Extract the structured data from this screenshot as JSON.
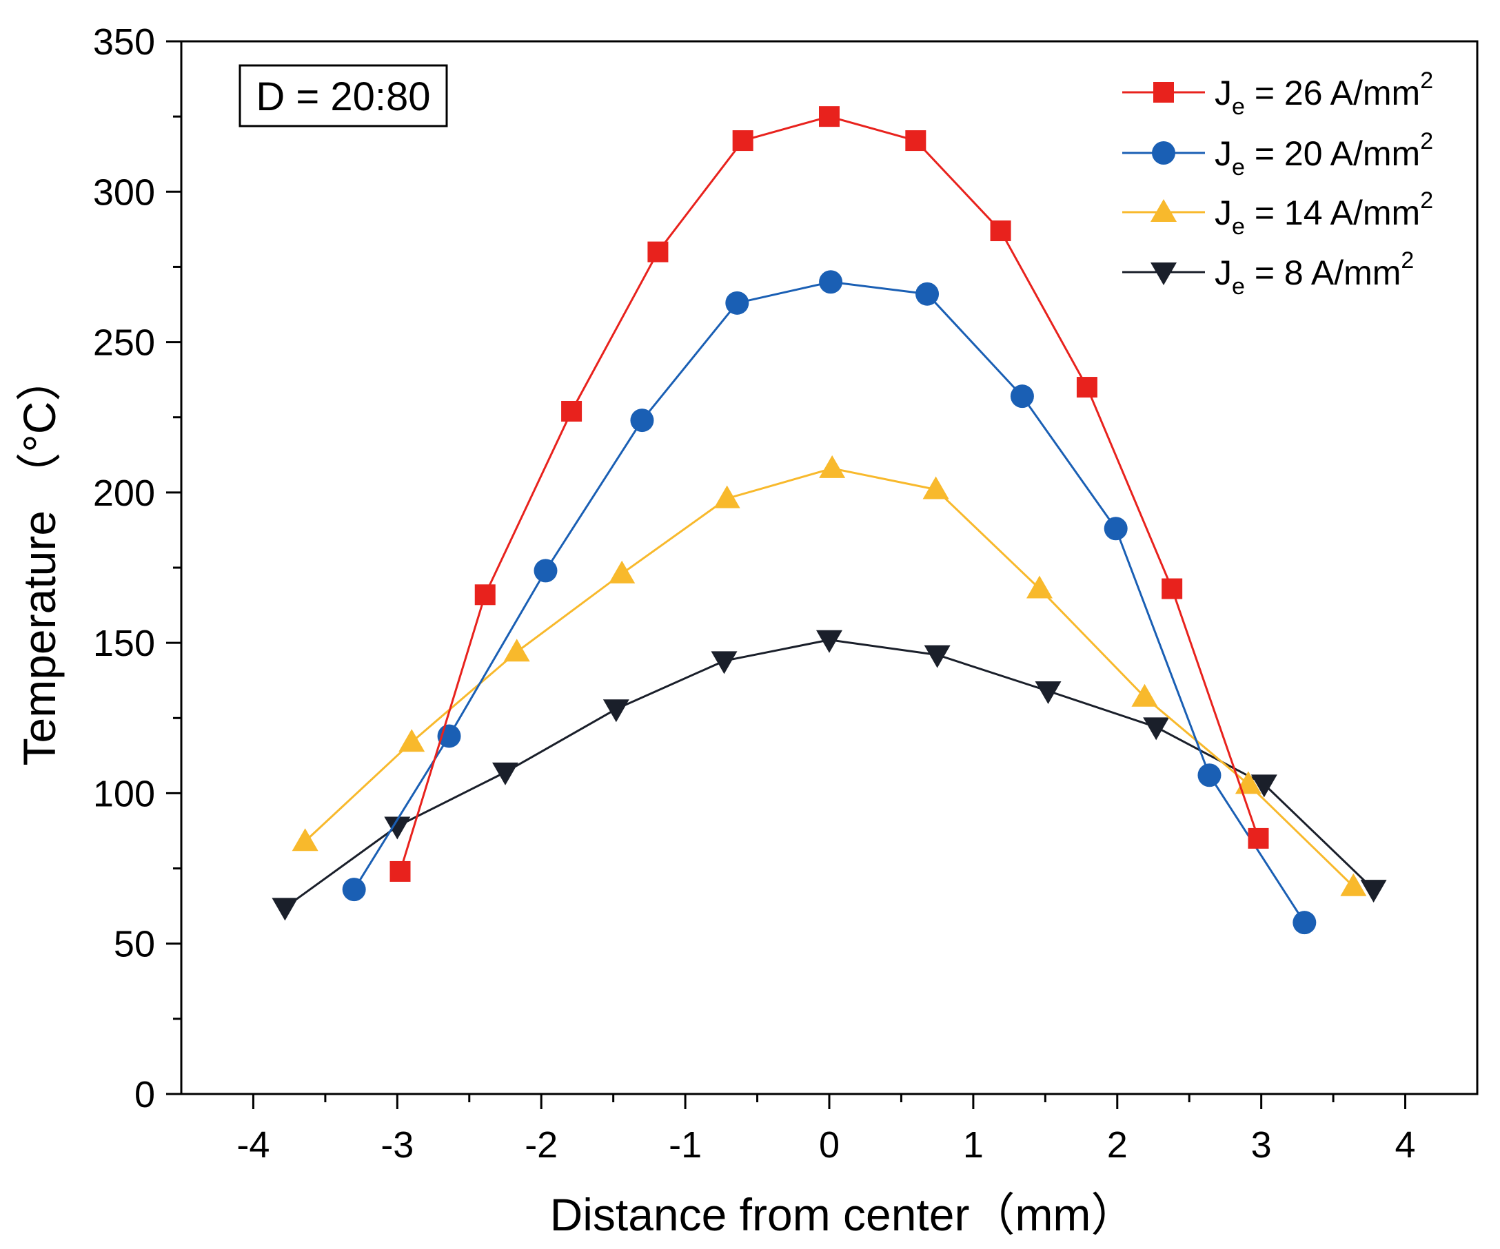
{
  "chart_data": {
    "type": "line",
    "title": "",
    "xlabel": "Distance from center（mm）",
    "ylabel": "Temperature （°C）",
    "xlim": [
      -4.5,
      4.5
    ],
    "ylim": [
      0,
      350
    ],
    "x_ticks": [
      -4,
      -3,
      -2,
      -1,
      0,
      1,
      2,
      3,
      4
    ],
    "x_tick_labels": [
      "-4",
      "-3",
      "-2",
      "-1",
      "0",
      "1",
      "2",
      "3",
      "4"
    ],
    "y_ticks": [
      0,
      50,
      100,
      150,
      200,
      250,
      300,
      350
    ],
    "y_tick_labels": [
      "0",
      "50",
      "100",
      "150",
      "200",
      "250",
      "300",
      "350"
    ],
    "grid": false,
    "legend_position": "top-right",
    "annotation": "D = 20:80",
    "series": [
      {
        "name": "Je = 26 A/mm2",
        "legend_main": "J",
        "legend_sub": "e",
        "legend_rest": " = 26 A/mm",
        "legend_sup": "2",
        "color": "#e8221d",
        "marker": "square",
        "x": [
          -2.98,
          -2.39,
          -1.79,
          -1.19,
          -0.6,
          0.0,
          0.6,
          1.19,
          1.79,
          2.38,
          2.98
        ],
        "y": [
          74,
          166,
          227,
          280,
          317,
          325,
          317,
          287,
          235,
          168,
          85
        ]
      },
      {
        "name": "Je = 20 A/mm2",
        "legend_main": "J",
        "legend_sub": "e",
        "legend_rest": " = 20 A/mm",
        "legend_sup": "2",
        "color": "#1a5fb4",
        "marker": "circle",
        "x": [
          -3.3,
          -2.64,
          -1.97,
          -1.3,
          -0.64,
          0.01,
          0.68,
          1.34,
          1.99,
          2.64,
          3.3
        ],
        "y": [
          68,
          119,
          174,
          224,
          263,
          270,
          266,
          232,
          188,
          106,
          57
        ]
      },
      {
        "name": "Je = 14 A/mm2",
        "legend_main": "J",
        "legend_sub": "e",
        "legend_rest": " = 14 A/mm",
        "legend_sup": "2",
        "color": "#f8b92c",
        "marker": "triangle-up",
        "x": [
          -3.64,
          -2.9,
          -2.17,
          -1.44,
          -0.71,
          0.02,
          0.74,
          1.46,
          2.19,
          2.91,
          3.64
        ],
        "y": [
          84,
          117,
          147,
          173,
          198,
          208,
          201,
          168,
          132,
          103,
          69
        ]
      },
      {
        "name": "Je = 8 A/mm2",
        "legend_main": "J",
        "legend_sub": "e",
        "legend_rest": " = 8 A/mm",
        "legend_sup": "2",
        "color": "#1a1f2a",
        "marker": "triangle-down",
        "x": [
          -3.78,
          -3.0,
          -2.25,
          -1.48,
          -0.73,
          0.0,
          0.75,
          1.52,
          2.27,
          3.02,
          3.78
        ],
        "y": [
          62,
          89,
          107,
          128,
          144,
          151,
          146,
          134,
          122,
          103,
          68
        ]
      }
    ]
  }
}
